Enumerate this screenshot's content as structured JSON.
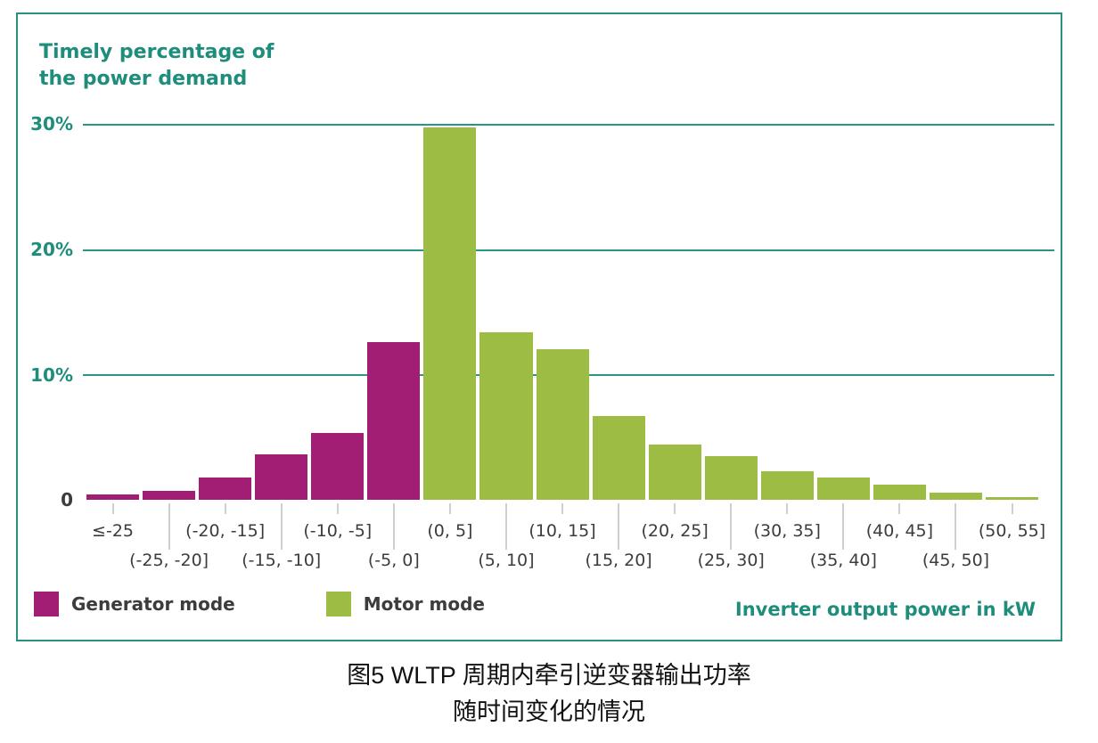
{
  "chart": {
    "title_line1": "Timely percentage of",
    "title_line2": "the power demand",
    "y_tick_labels": [
      "30%",
      "20%",
      "10%",
      "0"
    ],
    "x_axis_label": "Inverter output power in kW",
    "legend": [
      {
        "label": "Generator mode",
        "color": "#a21e74"
      },
      {
        "label": "Motor mode",
        "color": "#9cbc44"
      }
    ]
  },
  "chart_data": {
    "type": "bar",
    "title": "Timely percentage of the power demand",
    "xlabel": "Inverter output power in kW",
    "ylabel": "Timely percentage of the power demand",
    "ylim": [
      0,
      30
    ],
    "yticks": [
      0,
      10,
      20,
      30
    ],
    "grid": "horizontal",
    "legend_position": "bottom-left",
    "categories": [
      "≤-25",
      "(-25, -20]",
      "(-20, -15]",
      "(-15, -10]",
      "(-10, -5]",
      "(-5, 0]",
      "(0, 5]",
      "(5, 10]",
      "(10, 15]",
      "(15, 20]",
      "(20, 25]",
      "(25, 30]",
      "(30, 35]",
      "(35, 40]",
      "(40, 45]",
      "(45, 50]",
      "(50, 55]"
    ],
    "series": [
      {
        "name": "Generator mode",
        "color": "#a21e74",
        "values": [
          0.4,
          0.7,
          1.8,
          3.6,
          5.3,
          12.6,
          0,
          0,
          0,
          0,
          0,
          0,
          0,
          0,
          0,
          0,
          0
        ]
      },
      {
        "name": "Motor mode",
        "color": "#9cbc44",
        "values": [
          0,
          0,
          0,
          0,
          0,
          0,
          29.7,
          13.4,
          12.0,
          6.7,
          4.4,
          3.5,
          2.3,
          1.8,
          1.2,
          0.6,
          0.2
        ]
      }
    ]
  },
  "caption": {
    "line1": "图5 WLTP 周期内牵引逆变器输出功率",
    "line2": "随时间变化的情况"
  }
}
